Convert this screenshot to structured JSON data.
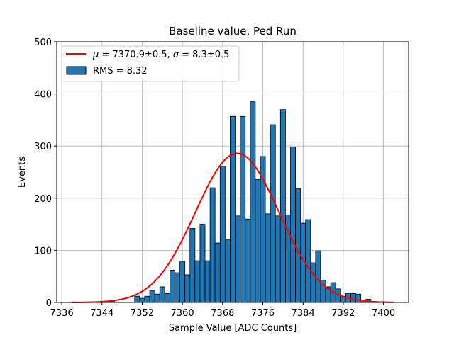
{
  "chart_data": {
    "type": "bar",
    "title": "Baseline value, Ped Run",
    "xlabel": "Sample Value [ADC Counts]",
    "ylabel": "Events",
    "xlim": [
      7335,
      7405
    ],
    "ylim": [
      0,
      500
    ],
    "xticks": [
      7336,
      7344,
      7352,
      7360,
      7368,
      7376,
      7384,
      7392,
      7400
    ],
    "yticks": [
      0,
      100,
      200,
      300,
      400,
      500
    ],
    "grid": true,
    "legend_position": "top-left",
    "bin_width": 1,
    "bin_start": 7343.5,
    "values": [
      1,
      0,
      2,
      0,
      0,
      0,
      0,
      12,
      8,
      12,
      23,
      16,
      30,
      17,
      62,
      57,
      79,
      53,
      142,
      80,
      150,
      80,
      220,
      114,
      261,
      121,
      357,
      166,
      357,
      160,
      385,
      236,
      280,
      170,
      341,
      166,
      370,
      168,
      298,
      218,
      152,
      159,
      76,
      99,
      43,
      30,
      38,
      26,
      12,
      17,
      17,
      16,
      1,
      6,
      2,
      1,
      1
    ],
    "series": [
      {
        "name": "RMS = 8.32",
        "kind": "histogram",
        "color": "#1f77b4",
        "edge_color": "#000000"
      },
      {
        "name": "μ = 7370.9±0.5, σ = 8.3±0.5",
        "kind": "gaussian_fit",
        "color": "#ff0000",
        "mu": 7370.9,
        "sigma": 8.3,
        "amplitude": 286,
        "x_range": [
          7338,
          7402
        ]
      }
    ],
    "legend": {
      "fit_prefix_mu": "μ",
      "fit_mid": " = 7370.9±0.5, ",
      "fit_prefix_sigma": "σ",
      "fit_suffix": " = 8.3±0.5",
      "hist_label": "RMS = 8.32"
    }
  }
}
